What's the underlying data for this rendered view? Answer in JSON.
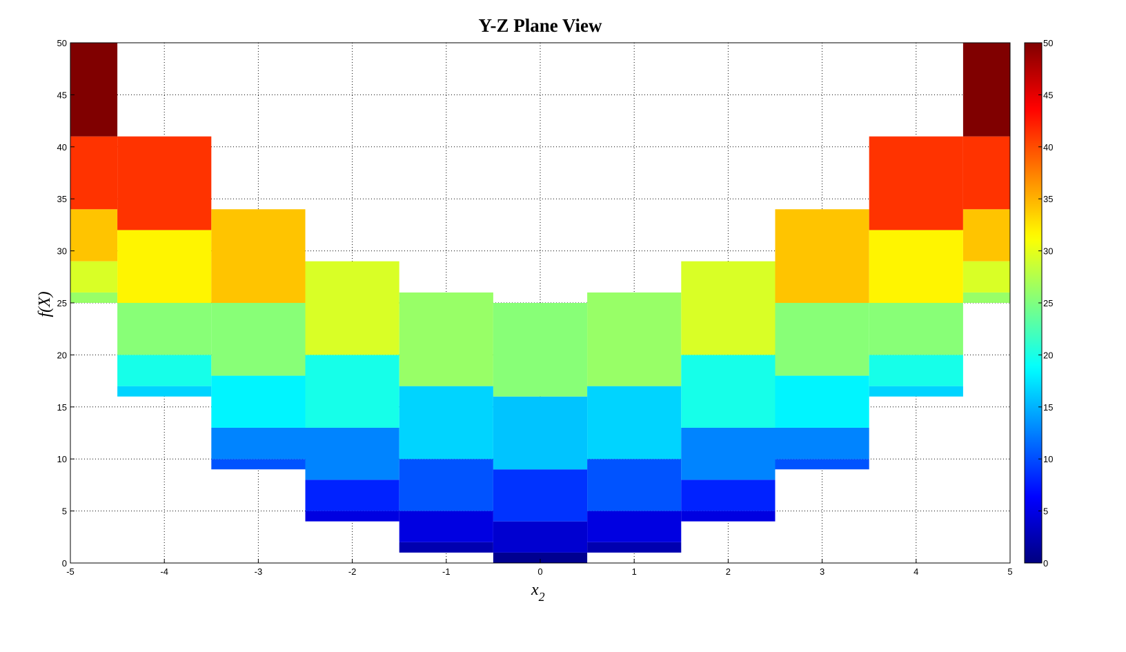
{
  "chart_data": {
    "type": "bar",
    "subtype": "stacked-range-columns",
    "title": "Y-Z Plane View",
    "xlabel_base": "x",
    "xlabel_sub": "2",
    "ylabel": "f(X)",
    "xlim": [
      -5,
      5
    ],
    "ylim": [
      0,
      50
    ],
    "x_ticks": [
      "-5",
      "-4",
      "-3",
      "-2",
      "-1",
      "0",
      "1",
      "2",
      "3",
      "4",
      "5"
    ],
    "y_ticks": [
      "0",
      "5",
      "10",
      "15",
      "20",
      "25",
      "30",
      "35",
      "40",
      "45",
      "50"
    ],
    "grid": true,
    "colormap": "jet",
    "color_range": [
      0,
      50
    ],
    "colorbar": {
      "position": "right",
      "ticks": [
        "0",
        "5",
        "10",
        "15",
        "20",
        "25",
        "30",
        "35",
        "40",
        "45",
        "50"
      ]
    },
    "column_width": 1,
    "columns": [
      {
        "x": -5,
        "levels": [
          25,
          26,
          29,
          34,
          41,
          50
        ]
      },
      {
        "x": -4,
        "levels": [
          16,
          17,
          20,
          25,
          32,
          41
        ]
      },
      {
        "x": -3,
        "levels": [
          9,
          10,
          13,
          18,
          25,
          34
        ]
      },
      {
        "x": -2,
        "levels": [
          4,
          5,
          8,
          13,
          20,
          29
        ]
      },
      {
        "x": -1,
        "levels": [
          1,
          2,
          5,
          10,
          17,
          26
        ]
      },
      {
        "x": 0,
        "levels": [
          0,
          1,
          4,
          9,
          16,
          25
        ]
      },
      {
        "x": 1,
        "levels": [
          1,
          2,
          5,
          10,
          17,
          26
        ]
      },
      {
        "x": 2,
        "levels": [
          4,
          5,
          8,
          13,
          20,
          29
        ]
      },
      {
        "x": 3,
        "levels": [
          9,
          10,
          13,
          18,
          25,
          34
        ]
      },
      {
        "x": 4,
        "levels": [
          16,
          17,
          20,
          25,
          32,
          41
        ]
      },
      {
        "x": 5,
        "levels": [
          25,
          26,
          29,
          34,
          41,
          50
        ]
      }
    ]
  }
}
